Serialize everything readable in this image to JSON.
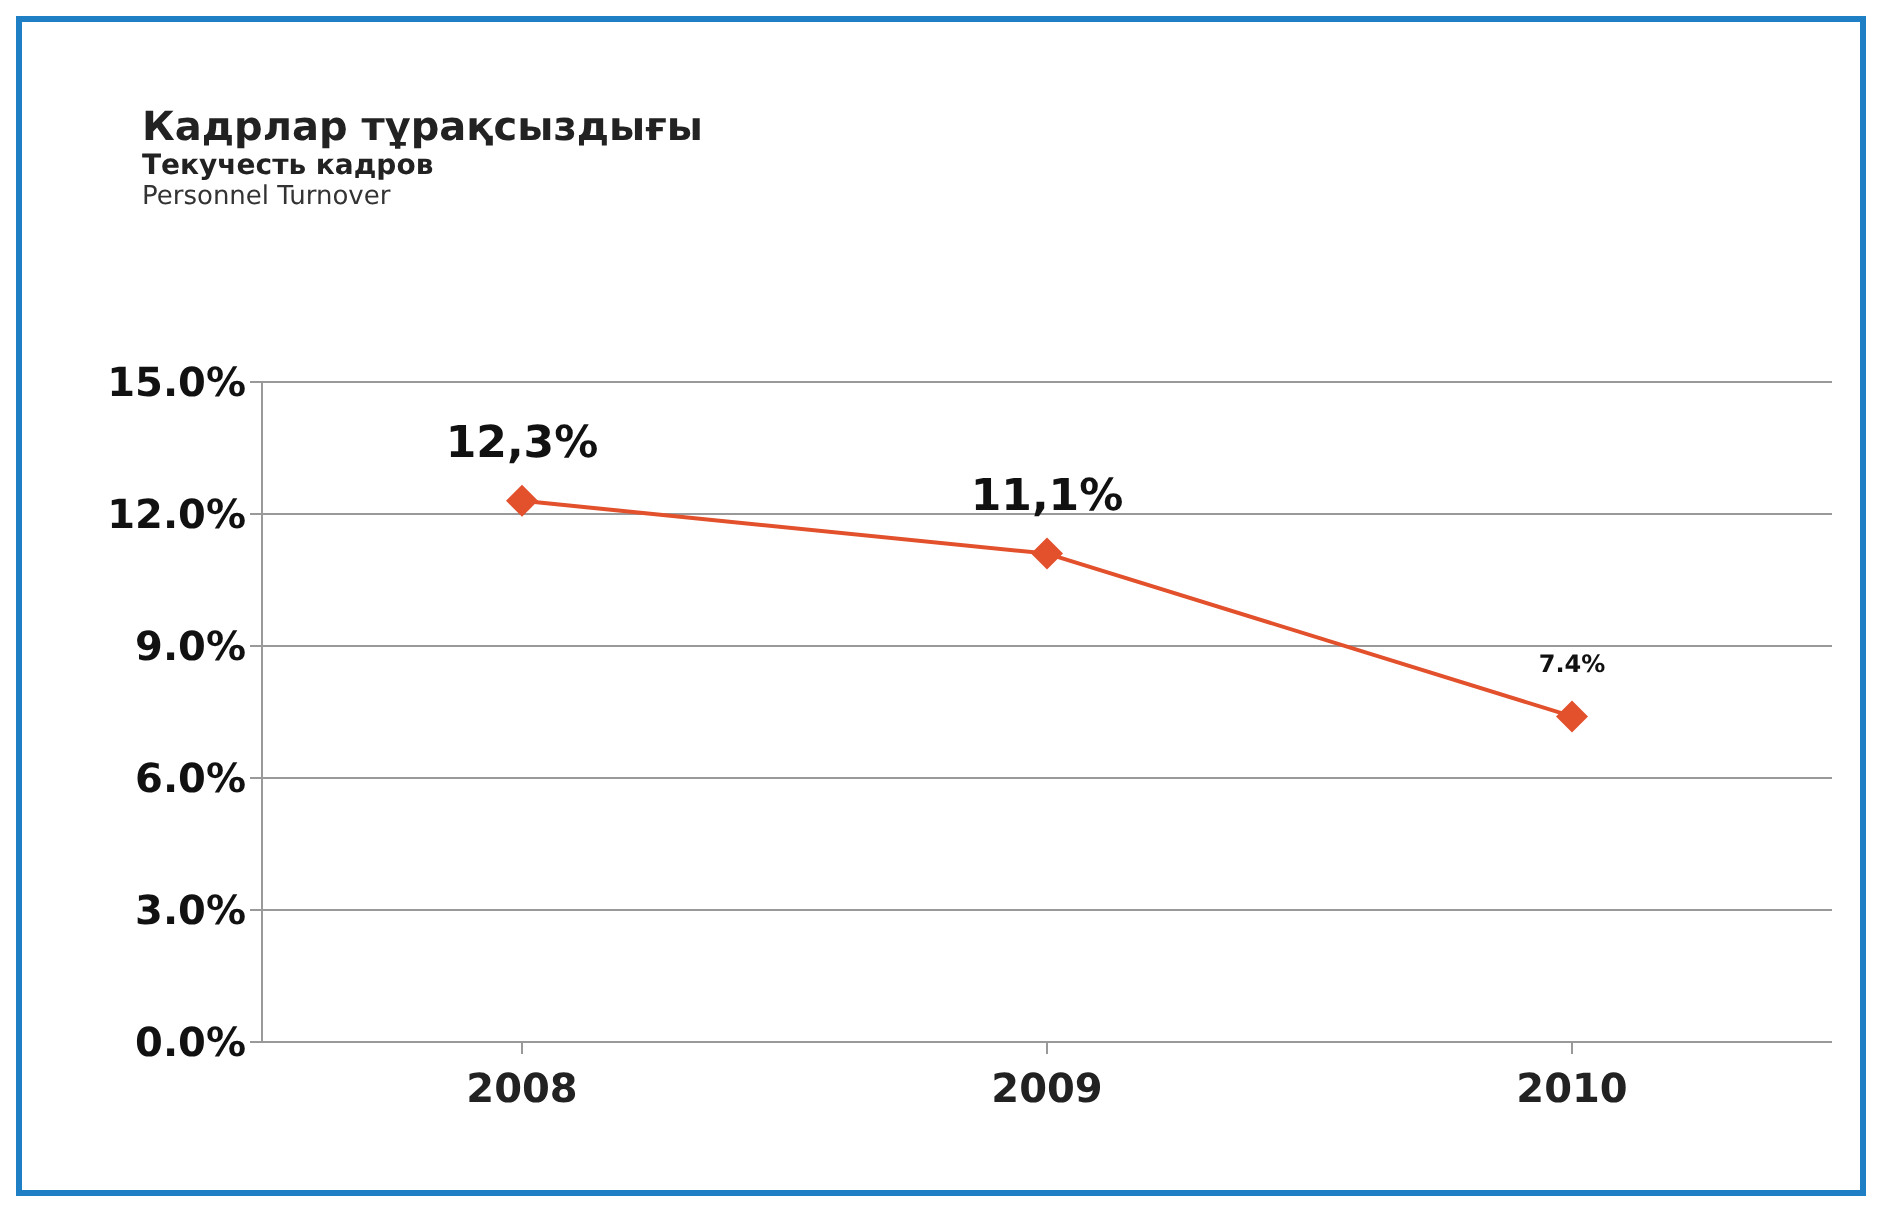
{
  "chart_data": {
    "type": "line",
    "title": "Кадрлар тұрақсыздығы",
    "subtitle": "Текучесть кадров",
    "annotations": [
      "Personnel Turnover"
    ],
    "categories": [
      "2008",
      "2009",
      "2010"
    ],
    "series": [
      {
        "color": "#e2502c",
        "values": [
          12.3,
          11.1,
          7.4
        ],
        "value_labels": [
          "12,3%",
          "11,1%",
          "7.4%"
        ]
      }
    ],
    "ylim": [
      0,
      15
    ],
    "yticks": [
      {
        "value": 0,
        "label": "0.0%"
      },
      {
        "value": 3,
        "label": "3.0%"
      },
      {
        "value": 6,
        "label": "6.0%"
      },
      {
        "value": 9,
        "label": "9.0%"
      },
      {
        "value": 12,
        "label": "12.0%"
      },
      {
        "value": 15,
        "label": "15.0%"
      }
    ],
    "grid": "y",
    "marker": "diamond",
    "line_style": "solid",
    "legend": false
  }
}
